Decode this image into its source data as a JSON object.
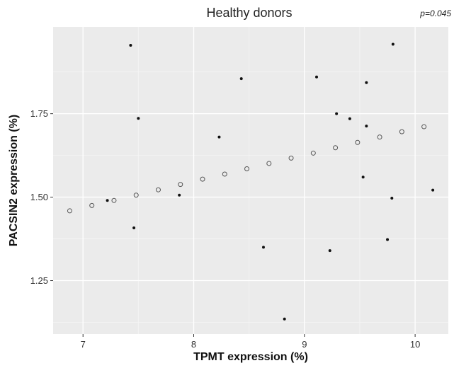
{
  "chart_data": {
    "type": "scatter",
    "title": "Healthy donors",
    "annotation": "p=0.045",
    "xlabel": "TPMT expression (%)",
    "ylabel": "PACSIN2 expression (%)",
    "xlim": [
      6.73,
      10.3
    ],
    "ylim": [
      1.09,
      2.01
    ],
    "x_ticks": [
      7,
      8,
      9,
      10
    ],
    "y_ticks": [
      1.25,
      1.5,
      1.75
    ],
    "x_tick_labels": [
      "7",
      "8",
      "9",
      "10"
    ],
    "y_tick_labels": [
      "1.25",
      "1.50",
      "1.75"
    ],
    "grid": true,
    "panel_color": "#ebebeb",
    "series": [
      {
        "style": "filled",
        "color": "#111111",
        "points": [
          {
            "x": 7.43,
            "y": 1.955
          },
          {
            "x": 7.5,
            "y": 1.736
          },
          {
            "x": 7.22,
            "y": 1.49
          },
          {
            "x": 7.46,
            "y": 1.408
          },
          {
            "x": 7.87,
            "y": 1.506
          },
          {
            "x": 8.23,
            "y": 1.68
          },
          {
            "x": 8.43,
            "y": 1.855
          },
          {
            "x": 8.63,
            "y": 1.35
          },
          {
            "x": 8.82,
            "y": 1.135
          },
          {
            "x": 9.11,
            "y": 1.86
          },
          {
            "x": 9.23,
            "y": 1.34
          },
          {
            "x": 9.29,
            "y": 1.75
          },
          {
            "x": 9.41,
            "y": 1.735
          },
          {
            "x": 9.53,
            "y": 1.56
          },
          {
            "x": 9.56,
            "y": 1.843
          },
          {
            "x": 9.56,
            "y": 1.713
          },
          {
            "x": 9.75,
            "y": 1.373
          },
          {
            "x": 9.79,
            "y": 1.497
          },
          {
            "x": 9.8,
            "y": 1.958
          },
          {
            "x": 10.16,
            "y": 1.521
          }
        ]
      },
      {
        "style": "open",
        "color": "#555555",
        "points": [
          {
            "x": 6.88,
            "y": 1.459
          },
          {
            "x": 7.08,
            "y": 1.475
          },
          {
            "x": 7.28,
            "y": 1.49
          },
          {
            "x": 7.48,
            "y": 1.506
          },
          {
            "x": 7.68,
            "y": 1.522
          },
          {
            "x": 7.88,
            "y": 1.538
          },
          {
            "x": 8.08,
            "y": 1.554
          },
          {
            "x": 8.28,
            "y": 1.569
          },
          {
            "x": 8.48,
            "y": 1.585
          },
          {
            "x": 8.68,
            "y": 1.601
          },
          {
            "x": 8.88,
            "y": 1.617
          },
          {
            "x": 9.08,
            "y": 1.632
          },
          {
            "x": 9.28,
            "y": 1.648
          },
          {
            "x": 9.48,
            "y": 1.664
          },
          {
            "x": 9.68,
            "y": 1.68
          },
          {
            "x": 9.88,
            "y": 1.696
          },
          {
            "x": 10.08,
            "y": 1.711
          }
        ]
      }
    ]
  }
}
